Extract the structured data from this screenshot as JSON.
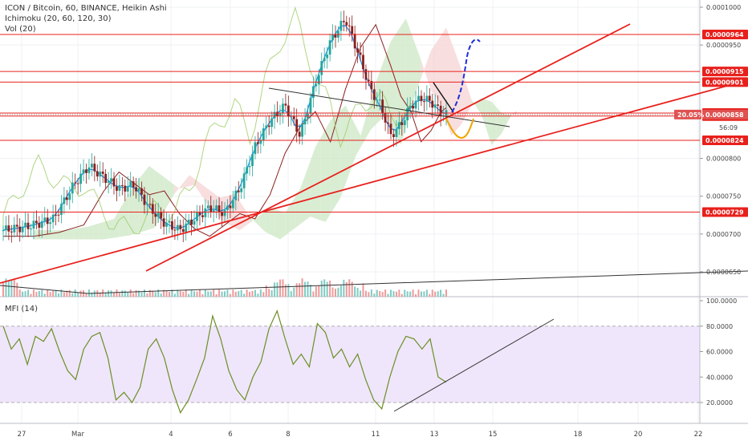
{
  "header": {
    "symbol_line": "ICON / Bitcoin, 60, BINANCE, Heikin Ashi",
    "ichimoku_label": "Ichimoku (20, 60, 120, 30)",
    "vol_label": "Vol (20)",
    "mfi_label": "MFI (14)"
  },
  "colors": {
    "resistance": "#e8201c",
    "trendline": "#e8201c",
    "ma_blue": "#2196f3",
    "candle_up": "#26a69a",
    "candle_down": "#8b1f1f",
    "mfi_line": "#6b8e23",
    "mfi_band": "#efe6fb",
    "cloud_green": "#cfe9c8",
    "cloud_red": "#f6d6d6",
    "projection_up": "#1f2fd8",
    "projection_down": "#f0a500"
  },
  "chart_data": [
    {
      "type": "candlestick",
      "title": "ICON / Bitcoin, 60, BINANCE, Heikin Ashi",
      "indicators": [
        "Ichimoku (20, 60, 120, 30)",
        "Vol (20)"
      ],
      "y_ticks": [
        "0.0001000",
        "0.0000950",
        "0.0000800",
        "0.0000750",
        "0.0000700",
        "0.0000650"
      ],
      "ylim": [
        6.35e-05,
        0.000101
      ],
      "x_ticks": [
        "27",
        "Mar",
        "4",
        "6",
        "8",
        "11",
        "13",
        "15",
        "18",
        "20",
        "22"
      ],
      "horizontal_levels": [
        {
          "label": "0.0000964",
          "value": 9.64e-05
        },
        {
          "label": "0.0000915",
          "value": 9.15e-05
        },
        {
          "label": "0.0000901",
          "value": 9.01e-05
        },
        {
          "label": "0.0000860",
          "value": 8.6e-05
        },
        {
          "label": "0.0000856",
          "value": 8.56e-05
        },
        {
          "label": "0.0000824",
          "value": 8.24e-05
        },
        {
          "label": "0.0000729",
          "value": 7.29e-05
        }
      ],
      "current_price": {
        "label": "0.0000858",
        "value": 8.58e-05,
        "change": "20.05%",
        "countdown": "56:09"
      },
      "approx_close_path": [
        [
          0,
          7.05e-05
        ],
        [
          5,
          7.1e-05
        ],
        [
          10,
          7.2e-05
        ],
        [
          14,
          7.65e-05
        ],
        [
          17,
          7.9e-05
        ],
        [
          20,
          7.75e-05
        ],
        [
          23,
          7.6e-05
        ],
        [
          26,
          7.65e-05
        ],
        [
          29,
          7.35e-05
        ],
        [
          32,
          7.15e-05
        ],
        [
          35,
          7.05e-05
        ],
        [
          38,
          7.2e-05
        ],
        [
          41,
          7.35e-05
        ],
        [
          44,
          7.28e-05
        ],
        [
          47,
          7.6e-05
        ],
        [
          50,
          8.15e-05
        ],
        [
          53,
          8.5e-05
        ],
        [
          56,
          8.7e-05
        ],
        [
          59,
          8.3e-05
        ],
        [
          62,
          9e-05
        ],
        [
          65,
          9.55e-05
        ],
        [
          68,
          9.85e-05
        ],
        [
          71,
          9.3e-05
        ],
        [
          73,
          8.9e-05
        ],
        [
          75,
          8.7e-05
        ],
        [
          77,
          8.3e-05
        ],
        [
          79,
          8.45e-05
        ],
        [
          81,
          8.7e-05
        ],
        [
          83,
          8.8e-05
        ],
        [
          85,
          8.75e-05
        ],
        [
          87,
          8.6e-05
        ],
        [
          88,
          8.58e-05
        ]
      ]
    },
    {
      "type": "line",
      "title": "MFI (14)",
      "y_ticks": [
        "100.0000",
        "80.0000",
        "60.0000",
        "40.0000",
        "20.0000"
      ],
      "ylim": [
        7,
        100
      ],
      "band": [
        20,
        80
      ],
      "series": [
        {
          "values": [
            80,
            62,
            70,
            50,
            72,
            68,
            78,
            60,
            45,
            38,
            62,
            72,
            75,
            55,
            22,
            28,
            20,
            32,
            62,
            70,
            55,
            30,
            12,
            22,
            38,
            55,
            88,
            70,
            45,
            30,
            22,
            40,
            52,
            78,
            92,
            70,
            50,
            58,
            48,
            82,
            75,
            55,
            62,
            48,
            58,
            38,
            22,
            15,
            40,
            60,
            72,
            70,
            62,
            70,
            40,
            36
          ]
        }
      ]
    }
  ]
}
